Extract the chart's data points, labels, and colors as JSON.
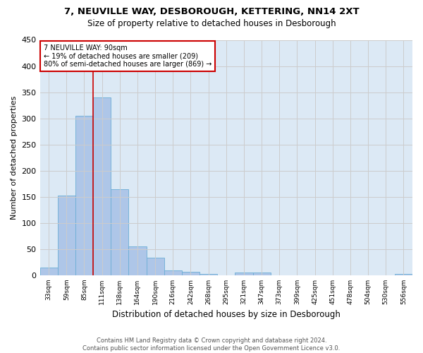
{
  "title1": "7, NEUVILLE WAY, DESBOROUGH, KETTERING, NN14 2XT",
  "title2": "Size of property relative to detached houses in Desborough",
  "xlabel": "Distribution of detached houses by size in Desborough",
  "ylabel": "Number of detached properties",
  "annotation_title": "7 NEUVILLE WAY: 90sqm",
  "annotation_line1": "← 19% of detached houses are smaller (209)",
  "annotation_line2": "80% of semi-detached houses are larger (869) →",
  "footer1": "Contains HM Land Registry data © Crown copyright and database right 2024.",
  "footer2": "Contains public sector information licensed under the Open Government Licence v3.0.",
  "bar_categories": [
    "33sqm",
    "59sqm",
    "85sqm",
    "111sqm",
    "138sqm",
    "164sqm",
    "190sqm",
    "216sqm",
    "242sqm",
    "268sqm",
    "295sqm",
    "321sqm",
    "347sqm",
    "373sqm",
    "399sqm",
    "425sqm",
    "451sqm",
    "478sqm",
    "504sqm",
    "530sqm",
    "556sqm"
  ],
  "bar_values": [
    15,
    153,
    305,
    340,
    165,
    55,
    33,
    9,
    7,
    3,
    0,
    5,
    5,
    0,
    0,
    0,
    0,
    0,
    0,
    0,
    3
  ],
  "bar_color": "#aec6e8",
  "bar_edge_color": "#6baed6",
  "vline_color": "#cc0000",
  "annotation_box_color": "#ffffff",
  "annotation_box_edge": "#cc0000",
  "background_color": "#ffffff",
  "grid_color": "#cccccc",
  "axes_bg_color": "#dce9f5",
  "ylim": [
    0,
    450
  ],
  "yticks": [
    0,
    50,
    100,
    150,
    200,
    250,
    300,
    350,
    400,
    450
  ]
}
